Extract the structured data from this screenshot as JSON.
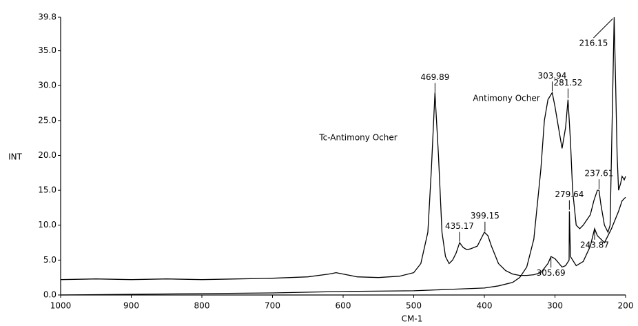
{
  "chart_data": {
    "type": "line",
    "xlabel": "CM-1",
    "ylabel": "INT",
    "xlim": [
      1000,
      200
    ],
    "xticks": [
      1000,
      900,
      800,
      700,
      600,
      500,
      400,
      300,
      200
    ],
    "ylim": [
      0,
      39.8
    ],
    "yticks": [
      {
        "value": 0,
        "label": "0.0"
      },
      {
        "value": 5,
        "label": "5.0"
      },
      {
        "value": 10,
        "label": "10.0"
      },
      {
        "value": 15,
        "label": "15.0"
      },
      {
        "value": 20,
        "label": "20.0"
      },
      {
        "value": 25,
        "label": "25.0"
      },
      {
        "value": 30,
        "label": "30.0"
      },
      {
        "value": 35,
        "label": "35.0"
      },
      {
        "value": 39.8,
        "label": "39.8"
      }
    ],
    "grid": false,
    "series": [
      {
        "name": "Tc-Antimony Ocher",
        "color": "#000000",
        "x": [
          1000,
          950,
          900,
          850,
          800,
          750,
          700,
          650,
          620,
          610,
          600,
          580,
          550,
          520,
          500,
          490,
          480,
          475,
          470,
          465,
          460,
          455,
          450,
          445,
          440,
          435,
          430,
          425,
          420,
          410,
          405,
          400,
          395,
          390,
          380,
          370,
          360,
          350,
          340,
          330,
          320,
          310,
          305.69,
          300,
          290,
          285,
          280,
          279.64,
          278,
          270,
          260,
          250,
          243.87,
          240,
          230,
          220,
          210,
          205,
          200
        ],
        "values": [
          2.2,
          2.3,
          2.2,
          2.3,
          2.2,
          2.3,
          2.4,
          2.6,
          3.0,
          3.2,
          3.0,
          2.6,
          2.5,
          2.7,
          3.2,
          4.5,
          9,
          18,
          29,
          20,
          9,
          5.5,
          4.5,
          5,
          6,
          7.5,
          6.8,
          6.5,
          6.6,
          7,
          8,
          9,
          8.5,
          7,
          4.5,
          3.5,
          3,
          2.8,
          2.8,
          2.9,
          3.2,
          4.5,
          5.5,
          5.2,
          4,
          4.2,
          5,
          12,
          5.5,
          4.2,
          4.8,
          7,
          9.5,
          8.5,
          7.5,
          9.5,
          12,
          13.5,
          14
        ],
        "peaks": [
          "469.89",
          "435.17",
          "399.15",
          "305.69",
          "279.64",
          "243.87"
        ]
      },
      {
        "name": "Antimony Ocher",
        "color": "#000000",
        "x": [
          1000,
          900,
          800,
          700,
          600,
          500,
          450,
          400,
          380,
          360,
          350,
          340,
          330,
          320,
          315,
          310,
          303.94,
          300,
          295,
          290,
          285,
          281.52,
          278,
          275,
          270,
          265,
          260,
          250,
          245,
          240,
          237.61,
          235,
          230,
          225,
          222,
          219,
          216.15,
          214,
          212,
          210,
          207,
          205,
          202,
          200
        ],
        "values": [
          0,
          0.1,
          0.2,
          0.3,
          0.5,
          0.6,
          0.8,
          1,
          1.3,
          1.8,
          2.5,
          4,
          8,
          18,
          25,
          28,
          29,
          27,
          24,
          21,
          24,
          28,
          22,
          15,
          10,
          9.5,
          10,
          11.5,
          13.5,
          15,
          15,
          13,
          10,
          9,
          10,
          25,
          39.8,
          30,
          20,
          15,
          16,
          17,
          16.5,
          17
        ],
        "peaks": [
          "303.94",
          "281.52",
          "237.61",
          "216.15"
        ]
      }
    ]
  }
}
